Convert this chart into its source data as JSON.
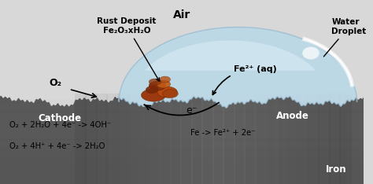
{
  "bg_color": "#d8d8d8",
  "iron_base_color": "#666666",
  "iron_light_color": "#bbbbbb",
  "iron_dark_color": "#444444",
  "water_fill_color": "#aaccdd",
  "water_edge_color": "#88aabb",
  "title_text": "Air",
  "water_droplet_label": "Water\nDroplet",
  "rust_label_line1": "Rust Deposit",
  "rust_label_line2": "Fe₂O₃xH₂O",
  "o2_label": "O₂",
  "cathode_label": "Cathode",
  "anode_label": "Anode",
  "iron_label": "Iron",
  "e_label": "e⁻",
  "fe2_label": "Fe²⁺ (aq)",
  "eq1": "O₂ + 2H₂O + 4e⁻ -> 4OH⁻",
  "eq2": "O₂ + 4H⁺ + 4e⁻ -> 2H₂O",
  "eq3": "Fe -> Fe²⁺ + 2e⁻"
}
